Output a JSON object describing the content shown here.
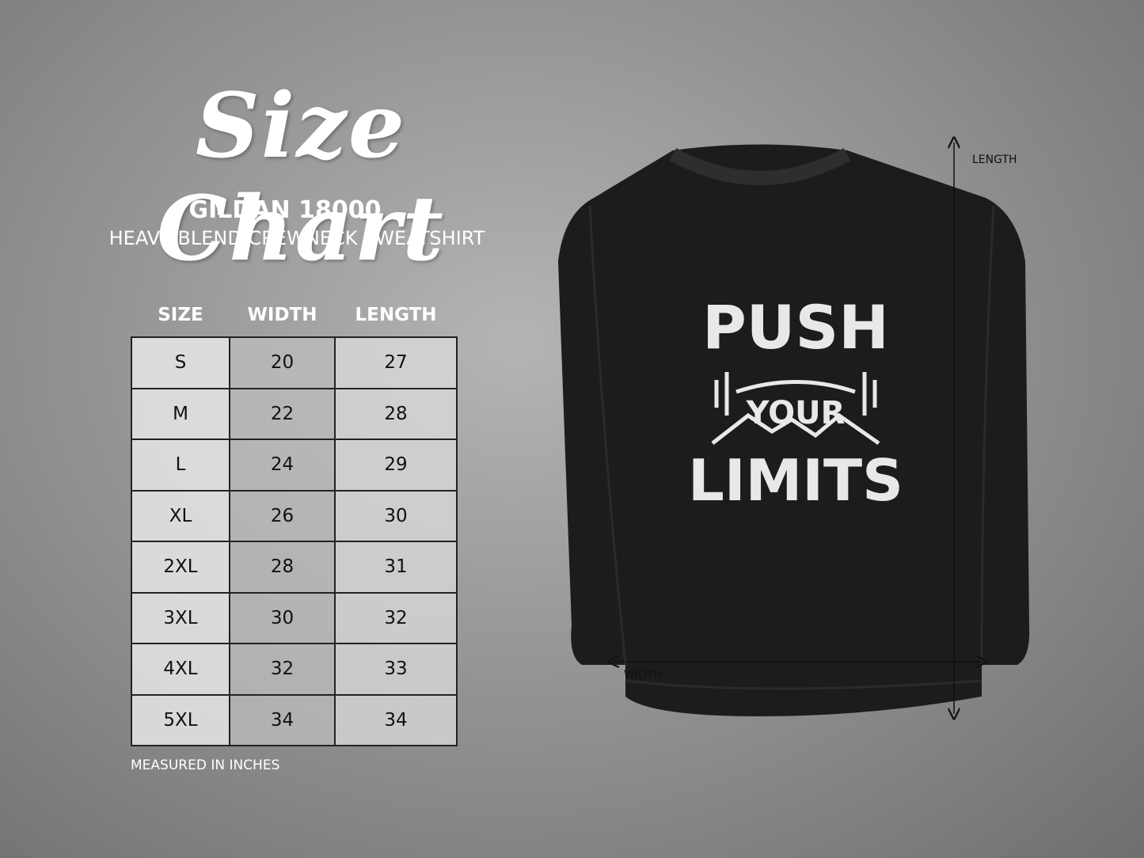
{
  "header": {
    "title": "Size Chart",
    "product": "GILDAN 18000",
    "subtitle": "HEAVY BLEND CREWNECK SWEATSHIRT"
  },
  "table": {
    "headers": [
      "SIZE",
      "WIDTH",
      "LENGTH"
    ],
    "rows": [
      [
        "S",
        20,
        27
      ],
      [
        "M",
        22,
        28
      ],
      [
        "L",
        24,
        29
      ],
      [
        "XL",
        26,
        30
      ],
      [
        "2XL",
        28,
        31
      ],
      [
        "3XL",
        30,
        32
      ],
      [
        "4XL",
        32,
        33
      ],
      [
        "5XL",
        34,
        34
      ]
    ]
  },
  "note": "MEASURED IN INCHES",
  "garment": {
    "print": [
      "PUSH",
      "YOUR",
      "LIMITS"
    ],
    "length_label": "LENGTH",
    "width_label": "WIDTH"
  }
}
